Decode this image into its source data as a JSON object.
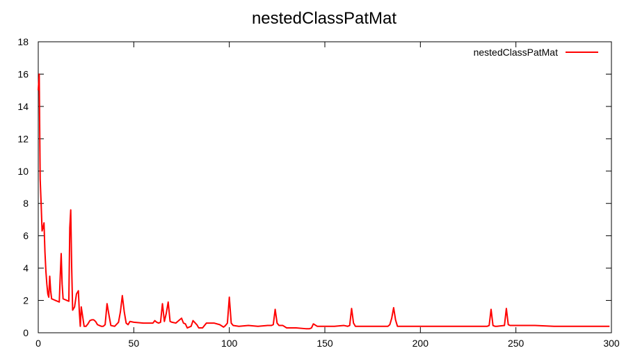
{
  "chart_data": {
    "type": "line",
    "title": "nestedClassPatMat",
    "xlabel": "",
    "ylabel": "",
    "xlim": [
      0,
      300
    ],
    "ylim": [
      0,
      18
    ],
    "xticks": [
      0,
      50,
      100,
      150,
      200,
      250,
      300
    ],
    "yticks": [
      0,
      2,
      4,
      6,
      8,
      10,
      12,
      14,
      16,
      18
    ],
    "grid": false,
    "legend_position": "top-right",
    "series": [
      {
        "name": "nestedClassPatMat",
        "color": "#ff0000",
        "x": [
          0,
          0.5,
          1,
          1.5,
          2,
          2.5,
          3,
          3.5,
          4,
          4.5,
          5,
          5.5,
          6,
          6.5,
          7,
          8,
          9,
          10,
          11,
          11.5,
          12,
          12.5,
          13,
          14,
          15,
          16,
          16.5,
          17,
          17.5,
          18,
          19,
          20,
          21,
          21.5,
          22,
          22.5,
          23,
          24,
          25,
          26,
          27,
          28,
          29,
          30,
          31,
          32,
          33,
          34,
          35,
          36,
          37,
          38,
          40,
          42,
          43,
          44,
          45,
          46,
          47,
          48,
          50,
          55,
          60,
          61,
          62,
          63,
          64,
          65,
          66,
          67,
          68,
          69,
          70,
          72,
          74,
          75,
          76,
          77,
          78,
          80,
          81,
          83,
          84,
          86,
          88,
          90,
          92,
          95,
          97,
          98,
          99,
          100,
          101,
          102,
          105,
          110,
          115,
          120,
          122,
          123,
          124,
          125,
          126,
          128,
          130,
          132,
          135,
          140,
          142,
          143,
          144,
          146,
          150,
          155,
          160,
          162,
          163,
          164,
          165,
          166,
          170,
          175,
          180,
          183,
          184,
          185,
          186,
          187,
          188,
          192,
          200,
          210,
          220,
          230,
          235,
          236,
          237,
          238,
          239,
          240,
          244,
          245,
          246,
          247,
          248,
          250,
          260,
          270,
          280,
          290,
          299
        ],
        "y": [
          15,
          16,
          9.5,
          8,
          6.3,
          6.5,
          6.8,
          5,
          3.8,
          3,
          2.4,
          2.2,
          3.5,
          2.6,
          2.1,
          2.05,
          2,
          1.95,
          1.9,
          3.5,
          4.9,
          3,
          2.1,
          2.05,
          2,
          1.95,
          6.5,
          7.6,
          4,
          1.4,
          1.6,
          2.4,
          2.6,
          1.3,
          0.4,
          1.6,
          1.2,
          0.4,
          0.4,
          0.55,
          0.75,
          0.8,
          0.8,
          0.7,
          0.5,
          0.45,
          0.4,
          0.4,
          0.5,
          1.8,
          1.1,
          0.45,
          0.4,
          0.65,
          1.3,
          2.3,
          1.3,
          0.6,
          0.5,
          0.7,
          0.65,
          0.6,
          0.6,
          0.75,
          0.65,
          0.6,
          0.65,
          1.8,
          0.7,
          1.2,
          1.9,
          0.7,
          0.65,
          0.6,
          0.8,
          0.9,
          0.6,
          0.55,
          0.3,
          0.4,
          0.75,
          0.5,
          0.3,
          0.3,
          0.6,
          0.6,
          0.6,
          0.5,
          0.35,
          0.45,
          0.6,
          2.2,
          0.6,
          0.45,
          0.4,
          0.45,
          0.4,
          0.45,
          0.45,
          0.5,
          1.45,
          0.6,
          0.45,
          0.45,
          0.3,
          0.3,
          0.3,
          0.25,
          0.25,
          0.3,
          0.55,
          0.4,
          0.4,
          0.4,
          0.45,
          0.4,
          0.45,
          1.5,
          0.6,
          0.4,
          0.4,
          0.4,
          0.4,
          0.4,
          0.5,
          0.9,
          1.55,
          0.8,
          0.4,
          0.4,
          0.4,
          0.4,
          0.4,
          0.4,
          0.4,
          0.45,
          1.45,
          0.45,
          0.4,
          0.4,
          0.45,
          1.5,
          0.5,
          0.45,
          0.45,
          0.45,
          0.45,
          0.4,
          0.4,
          0.4,
          0.4
        ]
      }
    ]
  }
}
